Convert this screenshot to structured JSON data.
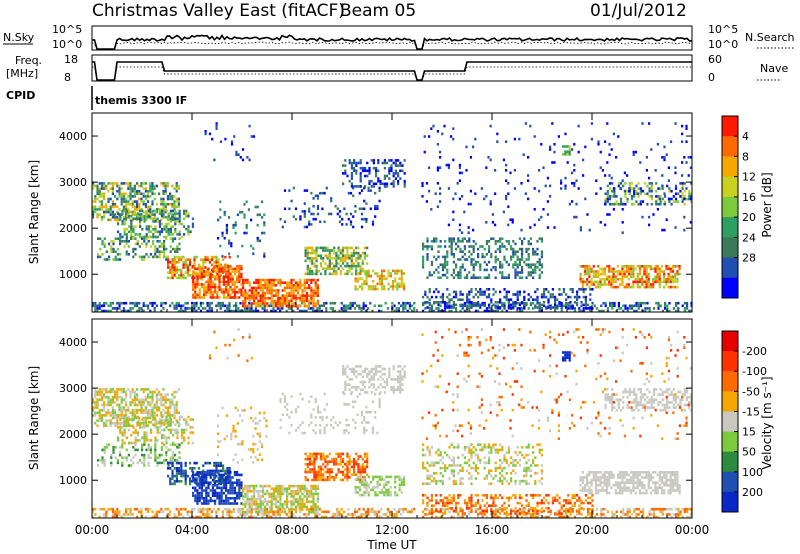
{
  "header": {
    "site": "Christmas Valley East (fitACF)",
    "beam": "Beam 05",
    "date": "01/Jul/2012"
  },
  "summary_panel": {
    "nsky_label": "N.Sky",
    "nsky_ticks": [
      "10^5",
      "10^0"
    ],
    "nsearch_label": "N.Search",
    "freq_label_1": "Freq.",
    "freq_label_2": "[MHz]",
    "freq_ticks": [
      "18",
      "8"
    ],
    "nave_label": "Nave",
    "nave_ticks": [
      "60",
      "0"
    ],
    "cpid_label": "CPID",
    "cpid_value": "themis 3300 IF"
  },
  "chart_data": [
    {
      "type": "heatmap",
      "name": "power",
      "xlabel": "Time UT",
      "ylabel": "Slant Range [km]",
      "xlim": [
        0,
        24
      ],
      "ylim": [
        180,
        4500
      ],
      "x_tick_labels": [
        "00:00",
        "04:00",
        "08:00",
        "12:00",
        "16:00",
        "20:00",
        "00:00"
      ],
      "x_ticks": [
        0,
        4,
        8,
        12,
        16,
        20,
        24
      ],
      "y_ticks": [
        1000,
        2000,
        3000,
        4000
      ],
      "colorbar": {
        "label": "Power [dB]",
        "ticks": [
          "4",
          "8",
          "12",
          "16",
          "20",
          "24",
          "28"
        ],
        "colors": [
          "#0000ff",
          "#1f4fb0",
          "#3a7a5a",
          "#2e9e62",
          "#7dcb3c",
          "#c8d020",
          "#f5a700",
          "#ff6a00",
          "#ff1a00"
        ]
      }
    },
    {
      "type": "heatmap",
      "name": "velocity",
      "xlabel": "Time UT",
      "ylabel": "Slant Range [km]",
      "xlim": [
        0,
        24
      ],
      "ylim": [
        180,
        4500
      ],
      "x_tick_labels": [
        "00:00",
        "04:00",
        "08:00",
        "12:00",
        "16:00",
        "20:00",
        "00:00"
      ],
      "x_ticks": [
        0,
        4,
        8,
        12,
        16,
        20,
        24
      ],
      "y_ticks": [
        1000,
        2000,
        3000,
        4000
      ],
      "colorbar": {
        "label": "Velocity [m s⁻¹]",
        "ticks": [
          "200",
          "100",
          "50",
          "15",
          "-15",
          "-50",
          "-100",
          "-200"
        ],
        "colors": [
          "#0a28c8",
          "#1f4fb0",
          "#2e8a3e",
          "#7dcb3c",
          "#c8c8c0",
          "#f5a700",
          "#ff6a00",
          "#ff3300",
          "#e60000"
        ]
      }
    }
  ]
}
